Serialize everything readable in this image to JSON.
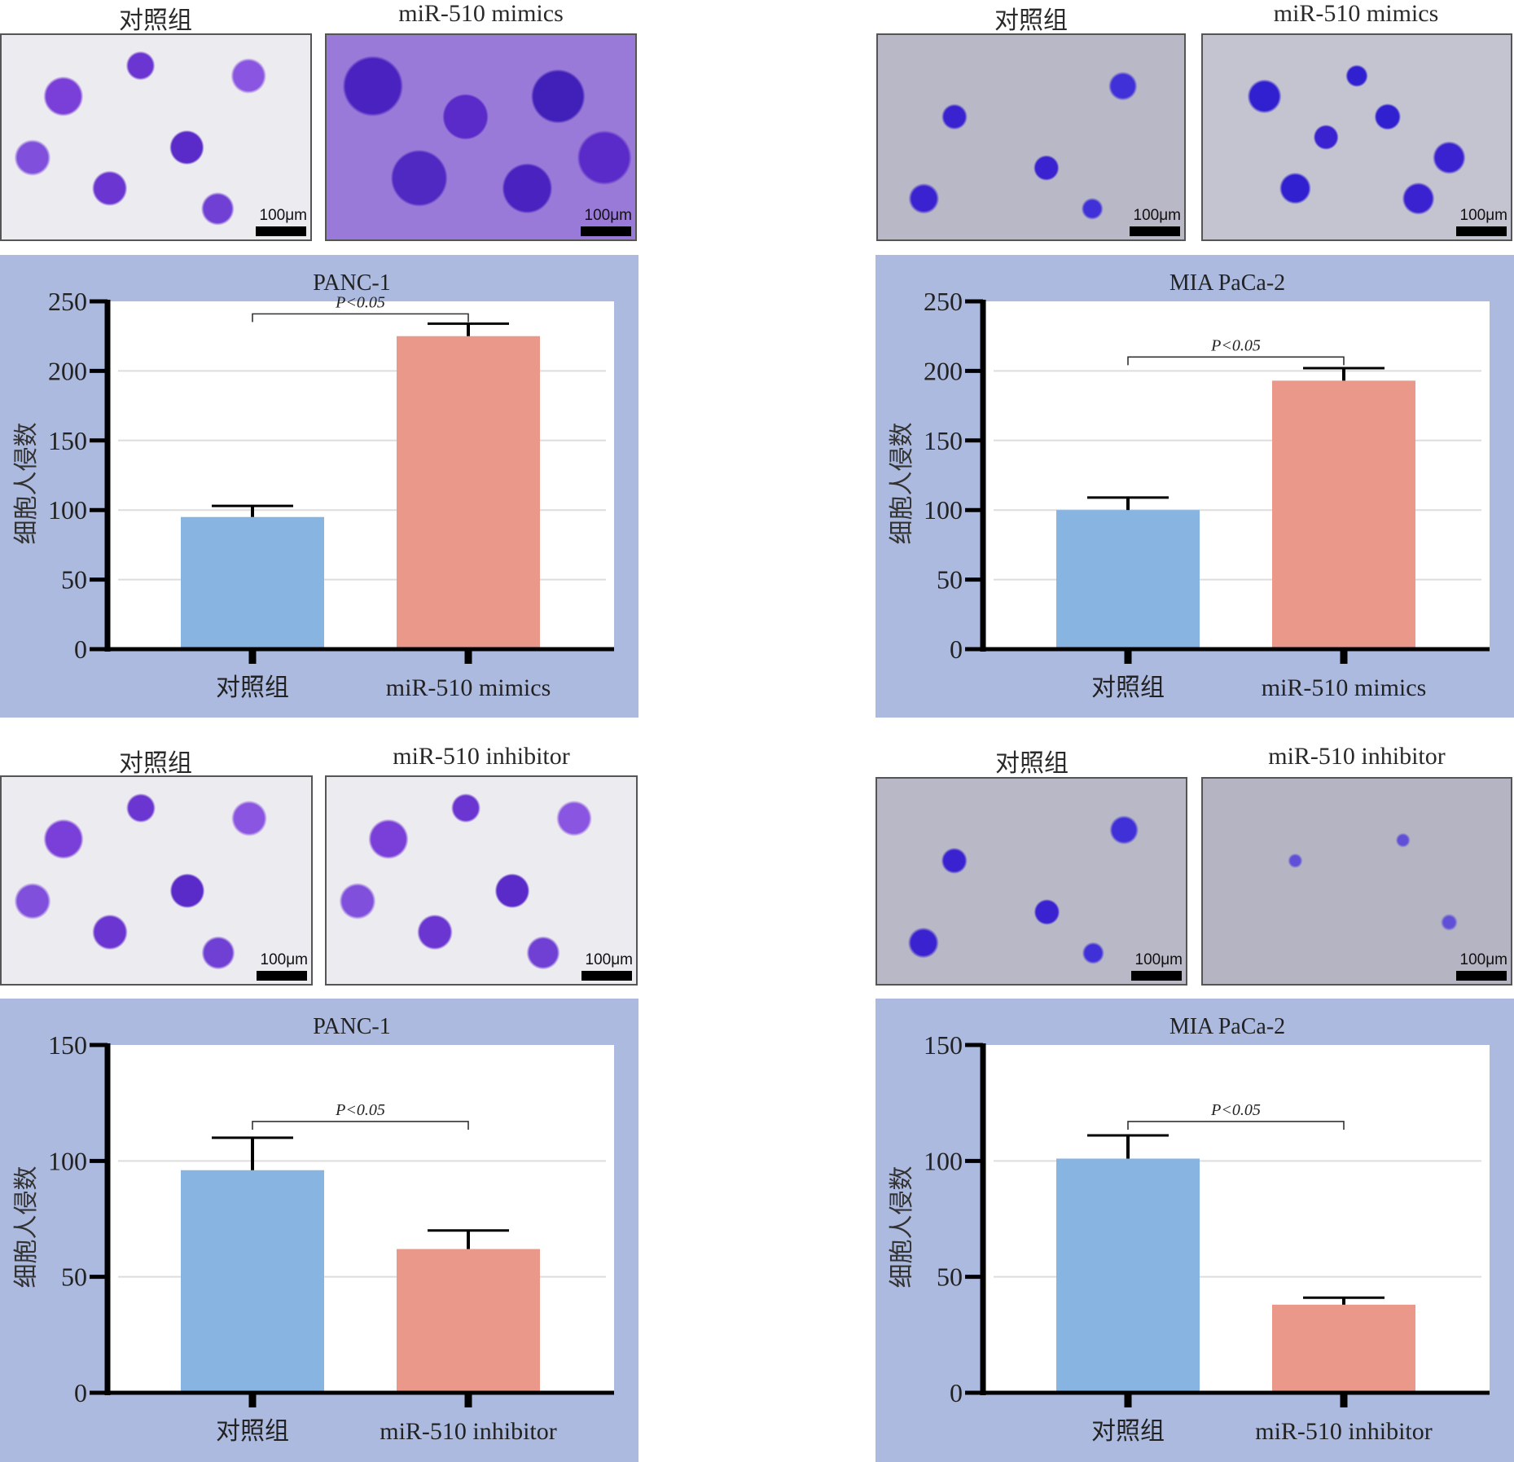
{
  "figure": {
    "groups": [
      {
        "id": "panc1-mimics",
        "micrographs": [
          {
            "label": "对照组",
            "scale_label": "100μm",
            "style": "bright"
          },
          {
            "label": "miR-510 mimics",
            "scale_label": "100μm",
            "style": "dense"
          }
        ]
      },
      {
        "id": "miapaca2-mimics",
        "micrographs": [
          {
            "label": "对照组",
            "scale_label": "100μm",
            "style": "grey"
          },
          {
            "label": "miR-510 mimics",
            "scale_label": "100μm",
            "style": "grey-dense"
          }
        ]
      },
      {
        "id": "panc1-inhibitor",
        "micrographs": [
          {
            "label": "对照组",
            "scale_label": "100μm",
            "style": "bright"
          },
          {
            "label": "miR-510 inhibitor",
            "scale_label": "100μm",
            "style": "bright"
          }
        ]
      },
      {
        "id": "miapaca2-inhibitor",
        "micrographs": [
          {
            "label": "对照组",
            "scale_label": "100μm",
            "style": "grey"
          },
          {
            "label": "miR-510 inhibitor",
            "scale_label": "100μm",
            "style": "grey-sparse"
          }
        ]
      }
    ],
    "colors": {
      "panel_bg": "#adbadf",
      "control_bar": "#87b4e0",
      "treatment_bar": "#e9988a",
      "gridline": "#dddddd",
      "axis": "#000000"
    }
  },
  "chart_data": [
    {
      "type": "bar",
      "title": "PANC-1",
      "categories": [
        "对照组",
        "miR-510 mimics"
      ],
      "values": [
        95,
        225
      ],
      "error_upper": [
        103,
        234
      ],
      "ylabel": "细胞人侵数",
      "xlabel": "",
      "ylim": [
        0,
        250
      ],
      "yticks": [
        0,
        50,
        100,
        150,
        200,
        250
      ],
      "grid": true,
      "annotation": {
        "text": "P<0.05",
        "between": [
          0,
          1
        ],
        "level": 241
      }
    },
    {
      "type": "bar",
      "title": "MIA PaCa-2",
      "categories": [
        "对照组",
        "miR-510 mimics"
      ],
      "values": [
        100,
        193
      ],
      "error_upper": [
        109,
        202
      ],
      "ylabel": "细胞人侵数",
      "xlabel": "",
      "ylim": [
        0,
        250
      ],
      "yticks": [
        0,
        50,
        100,
        150,
        200,
        250
      ],
      "grid": true,
      "annotation": {
        "text": "P<0.05",
        "between": [
          0,
          1
        ],
        "level": 210
      }
    },
    {
      "type": "bar",
      "title": "PANC-1",
      "categories": [
        "对照组",
        "miR-510 inhibitor"
      ],
      "values": [
        96,
        62
      ],
      "error_upper": [
        110,
        70
      ],
      "ylabel": "细胞人侵数",
      "xlabel": "",
      "ylim": [
        0,
        150
      ],
      "yticks": [
        0,
        50,
        100,
        150
      ],
      "grid": true,
      "annotation": {
        "text": "P<0.05",
        "between": [
          0,
          1
        ],
        "level": 117
      }
    },
    {
      "type": "bar",
      "title": "MIA PaCa-2",
      "categories": [
        "对照组",
        "miR-510 inhibitor"
      ],
      "values": [
        101,
        38
      ],
      "error_upper": [
        111,
        41
      ],
      "ylabel": "细胞人侵数",
      "xlabel": "",
      "ylim": [
        0,
        150
      ],
      "yticks": [
        0,
        50,
        100,
        150
      ],
      "grid": true,
      "annotation": {
        "text": "P<0.05",
        "between": [
          0,
          1
        ],
        "level": 117
      }
    }
  ]
}
